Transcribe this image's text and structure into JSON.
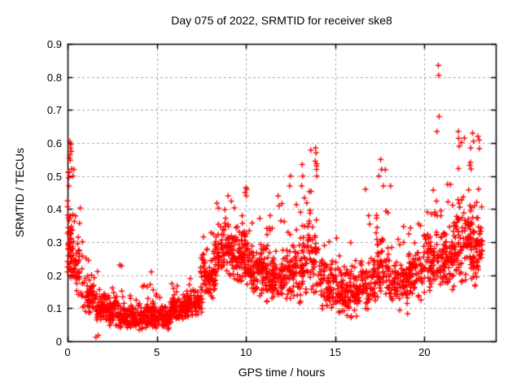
{
  "chart_data": {
    "type": "scatter",
    "title": "Day 075 of 2022, SRMTID for receiver ske8",
    "xlabel": "GPS time / hours",
    "ylabel": "SRMTID / TECUs",
    "xlim": [
      0,
      24
    ],
    "ylim": [
      0,
      0.9
    ],
    "xticks": [
      [
        0,
        "0"
      ],
      [
        5,
        "5"
      ],
      [
        10,
        "10"
      ],
      [
        15,
        "15"
      ],
      [
        20,
        "20"
      ]
    ],
    "yticks": [
      [
        0,
        "0"
      ],
      [
        0.1,
        "0.1"
      ],
      [
        0.2,
        "0.2"
      ],
      [
        0.3,
        "0.3"
      ],
      [
        0.4,
        "0.4"
      ],
      [
        0.5,
        "0.5"
      ],
      [
        0.6,
        "0.6"
      ],
      [
        0.7,
        "0.7"
      ],
      [
        0.8,
        "0.8"
      ],
      [
        0.9,
        "0.9"
      ]
    ],
    "grid": true,
    "legend": "none",
    "marker": {
      "shape": "plus",
      "color": "#ff0000",
      "size": 7
    },
    "colors": {
      "marker": "#ff0000",
      "grid": "#a8a8a8",
      "axis": "#000000",
      "background": "#ffffff",
      "text": "#000000"
    },
    "bins_format": [
      "t_start",
      "t_end",
      "n_points",
      "y_mode",
      "y_spread",
      "y_min",
      "y_max",
      "tail_fraction"
    ],
    "density_bins": [
      [
        0.0,
        0.3,
        60,
        0.28,
        0.1,
        0.1,
        0.61,
        0.25
      ],
      [
        0.3,
        0.8,
        45,
        0.22,
        0.08,
        0.11,
        0.42,
        0.12
      ],
      [
        0.8,
        1.5,
        55,
        0.14,
        0.05,
        0.08,
        0.38,
        0.06
      ],
      [
        1.5,
        2.2,
        65,
        0.1,
        0.04,
        0.03,
        0.22,
        0.05
      ],
      [
        2.2,
        3.0,
        85,
        0.09,
        0.04,
        0.04,
        0.25,
        0.06
      ],
      [
        3.0,
        4.0,
        110,
        0.07,
        0.03,
        0.025,
        0.16,
        0.05
      ],
      [
        4.0,
        5.0,
        110,
        0.075,
        0.035,
        0.03,
        0.21,
        0.06
      ],
      [
        5.0,
        5.8,
        85,
        0.07,
        0.03,
        0.03,
        0.16,
        0.05
      ],
      [
        5.8,
        6.6,
        75,
        0.1,
        0.04,
        0.04,
        0.18,
        0.05
      ],
      [
        6.6,
        7.5,
        85,
        0.11,
        0.04,
        0.05,
        0.2,
        0.05
      ],
      [
        7.5,
        8.3,
        85,
        0.2,
        0.07,
        0.08,
        0.33,
        0.06
      ],
      [
        8.3,
        9.3,
        95,
        0.28,
        0.07,
        0.12,
        0.44,
        0.06
      ],
      [
        9.3,
        10.1,
        85,
        0.25,
        0.08,
        0.1,
        0.465,
        0.08
      ],
      [
        10.1,
        11.0,
        95,
        0.22,
        0.07,
        0.1,
        0.4,
        0.06
      ],
      [
        11.0,
        12.0,
        95,
        0.2,
        0.07,
        0.08,
        0.44,
        0.06
      ],
      [
        12.0,
        12.8,
        80,
        0.2,
        0.08,
        0.08,
        0.5,
        0.07
      ],
      [
        12.8,
        13.4,
        60,
        0.22,
        0.09,
        0.1,
        0.535,
        0.1
      ],
      [
        13.4,
        14.1,
        60,
        0.25,
        0.09,
        0.1,
        0.585,
        0.12
      ],
      [
        14.1,
        15.2,
        95,
        0.17,
        0.07,
        0.05,
        0.32,
        0.05
      ],
      [
        15.2,
        16.2,
        95,
        0.15,
        0.07,
        0.04,
        0.3,
        0.05
      ],
      [
        16.2,
        17.2,
        85,
        0.17,
        0.07,
        0.06,
        0.46,
        0.06
      ],
      [
        17.2,
        18.0,
        70,
        0.22,
        0.08,
        0.1,
        0.55,
        0.1
      ],
      [
        18.0,
        19.0,
        85,
        0.17,
        0.07,
        0.06,
        0.4,
        0.06
      ],
      [
        19.0,
        20.0,
        85,
        0.2,
        0.07,
        0.08,
        0.38,
        0.06
      ],
      [
        20.0,
        20.9,
        85,
        0.24,
        0.08,
        0.1,
        0.46,
        0.08
      ],
      [
        20.9,
        21.7,
        85,
        0.25,
        0.08,
        0.1,
        0.5,
        0.08
      ],
      [
        21.7,
        22.6,
        95,
        0.3,
        0.1,
        0.12,
        0.62,
        0.1
      ],
      [
        22.6,
        23.2,
        80,
        0.28,
        0.1,
        0.12,
        0.64,
        0.1
      ]
    ],
    "outlier_points": [
      [
        0.12,
        0.605
      ],
      [
        0.18,
        0.595
      ],
      [
        0.15,
        0.585
      ],
      [
        0.22,
        0.575
      ],
      [
        0.1,
        0.555
      ],
      [
        0.35,
        0.52
      ],
      [
        0.3,
        0.5
      ],
      [
        1.59,
        0.012
      ],
      [
        1.72,
        0.018
      ],
      [
        9.0,
        0.44
      ],
      [
        10.0,
        0.465
      ],
      [
        9.95,
        0.45
      ],
      [
        10.02,
        0.44
      ],
      [
        11.8,
        0.44
      ],
      [
        11.85,
        0.41
      ],
      [
        12.5,
        0.5
      ],
      [
        12.45,
        0.47
      ],
      [
        13.15,
        0.535
      ],
      [
        13.18,
        0.5
      ],
      [
        13.12,
        0.47
      ],
      [
        13.9,
        0.585
      ],
      [
        13.93,
        0.57
      ],
      [
        13.88,
        0.545
      ],
      [
        13.95,
        0.52
      ],
      [
        13.97,
        0.5
      ],
      [
        16.7,
        0.46
      ],
      [
        17.55,
        0.55
      ],
      [
        17.6,
        0.52
      ],
      [
        17.45,
        0.5
      ],
      [
        17.7,
        0.47
      ],
      [
        18.1,
        0.47
      ],
      [
        20.78,
        0.835
      ],
      [
        20.8,
        0.805
      ],
      [
        20.82,
        0.68
      ],
      [
        20.7,
        0.635
      ],
      [
        21.3,
        0.475
      ],
      [
        21.9,
        0.635
      ],
      [
        21.95,
        0.59
      ],
      [
        22.6,
        0.585
      ],
      [
        22.7,
        0.63
      ],
      [
        22.75,
        0.605
      ],
      [
        23.0,
        0.62
      ]
    ]
  }
}
